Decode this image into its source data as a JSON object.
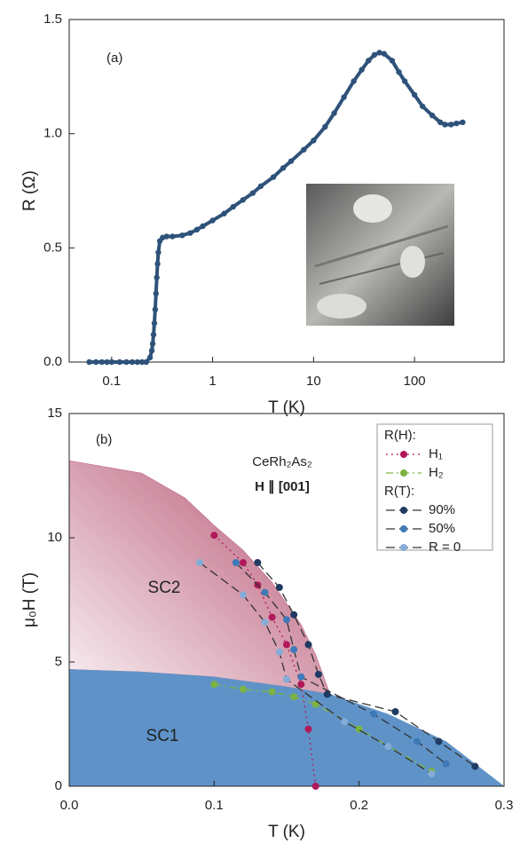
{
  "chart_data": [
    {
      "type": "scatter",
      "xlabel": "T (K)",
      "ylabel": "R (Ω)",
      "annotations": [
        "(a)"
      ],
      "xscale": "log",
      "xlim": [
        0.038,
        770
      ],
      "xticks": [
        0.1,
        1,
        10,
        100
      ],
      "ylim": [
        0,
        1.5
      ],
      "yticks": [
        {
          "value": 0,
          "label": "0.0"
        },
        0.5,
        {
          "value": 1,
          "label": "1.0"
        },
        1.5
      ],
      "series": [
        {
          "color": "#2e5279",
          "x": [
            0.06,
            0.07,
            0.08,
            0.09,
            0.1,
            0.12,
            0.14,
            0.16,
            0.18,
            0.2,
            0.22,
            0.24,
            0.25,
            0.255,
            0.26,
            0.265,
            0.27,
            0.275,
            0.28,
            0.285,
            0.29,
            0.3,
            0.32,
            0.35,
            0.4,
            0.5,
            0.6,
            0.7,
            0.8,
            1,
            1.3,
            1.6,
            2,
            2.5,
            3,
            4,
            5,
            6,
            8,
            10,
            13,
            16,
            20,
            25,
            30,
            35,
            40,
            45,
            50,
            60,
            70,
            80,
            100,
            120,
            150,
            180,
            200,
            230,
            260,
            300
          ],
          "values": [
            0,
            0,
            0,
            0,
            0,
            0,
            0,
            0,
            0,
            0,
            0,
            0.02,
            0.05,
            0.08,
            0.12,
            0.17,
            0.23,
            0.3,
            0.37,
            0.43,
            0.48,
            0.53,
            0.545,
            0.55,
            0.55,
            0.555,
            0.565,
            0.58,
            0.595,
            0.62,
            0.65,
            0.68,
            0.71,
            0.74,
            0.77,
            0.81,
            0.85,
            0.88,
            0.93,
            0.97,
            1.03,
            1.09,
            1.16,
            1.23,
            1.28,
            1.32,
            1.345,
            1.355,
            1.35,
            1.32,
            1.27,
            1.23,
            1.17,
            1.12,
            1.08,
            1.05,
            1.04,
            1.04,
            1.045,
            1.05
          ]
        }
      ]
    },
    {
      "type": "scatter",
      "xlabel": "T (K)",
      "ylabel": "μ₀H (T)",
      "annotations": [
        "(b)",
        "CeRh₂As₂",
        "H ∥ [001]"
      ],
      "xscale": "linear",
      "xlim": [
        0,
        0.3
      ],
      "xticks": [
        {
          "value": 0,
          "label": "0.0"
        },
        0.1,
        0.2,
        0.3
      ],
      "ylim": [
        0,
        15
      ],
      "yticks": [
        0,
        5,
        10,
        15
      ],
      "regions": [
        {
          "name": "SC2",
          "color": "#b5506f",
          "x": [
            0,
            0.05,
            0.08,
            0.1,
            0.12,
            0.14,
            0.16,
            0.17,
            0.18,
            0.15,
            0.1,
            0.05,
            0
          ],
          "values": [
            13.1,
            12.6,
            11.6,
            10.5,
            9.5,
            8.2,
            6.5,
            5.3,
            3.7,
            4.0,
            4.4,
            4.6,
            4.7
          ]
        },
        {
          "name": "SC1",
          "color": "#5f93c8",
          "x": [
            0,
            0.05,
            0.1,
            0.15,
            0.18,
            0.22,
            0.26,
            0.28,
            0.3,
            0
          ],
          "values": [
            4.7,
            4.6,
            4.4,
            4.0,
            3.7,
            2.9,
            1.8,
            0.9,
            0,
            0
          ]
        }
      ],
      "groups": [
        {
          "title": "R(H):",
          "series": [
            {
              "name": "H₁",
              "color": "#b0185a",
              "dash": "dotted",
              "x": [
                0.1,
                0.12,
                0.13,
                0.14,
                0.15,
                0.16,
                0.165,
                0.17
              ],
              "values": [
                10.1,
                9.0,
                8.1,
                6.8,
                5.7,
                4.1,
                2.3,
                0
              ]
            },
            {
              "name": "H₂",
              "color": "#7cb342",
              "dash": "dashdot",
              "x": [
                0.1,
                0.12,
                0.14,
                0.155,
                0.17,
                0.2,
                0.25
              ],
              "values": [
                4.1,
                3.9,
                3.8,
                3.6,
                3.3,
                2.3,
                0.6
              ]
            }
          ]
        },
        {
          "title": "R(T):",
          "series": [
            {
              "name": "90%",
              "color": "#1f3b63",
              "dash": "dashed",
              "x": [
                0.13,
                0.145,
                0.155,
                0.165,
                0.172,
                0.178,
                0.225,
                0.255,
                0.28
              ],
              "values": [
                9.0,
                8.0,
                6.9,
                5.7,
                4.5,
                3.7,
                3.0,
                1.8,
                0.8
              ]
            },
            {
              "name": "50%",
              "color": "#3f7ab8",
              "dash": "dashed",
              "x": [
                0.115,
                0.135,
                0.15,
                0.155,
                0.16,
                0.21,
                0.24,
                0.26
              ],
              "values": [
                9.0,
                7.8,
                6.7,
                5.5,
                4.4,
                2.9,
                1.8,
                0.9
              ]
            },
            {
              "name": "R = 0",
              "color": "#85acd8",
              "dash": "dashed",
              "x": [
                0.09,
                0.12,
                0.135,
                0.145,
                0.15,
                0.19,
                0.22,
                0.25
              ],
              "values": [
                9.0,
                7.7,
                6.6,
                5.4,
                4.3,
                2.6,
                1.6,
                0.5
              ]
            }
          ]
        }
      ]
    }
  ]
}
